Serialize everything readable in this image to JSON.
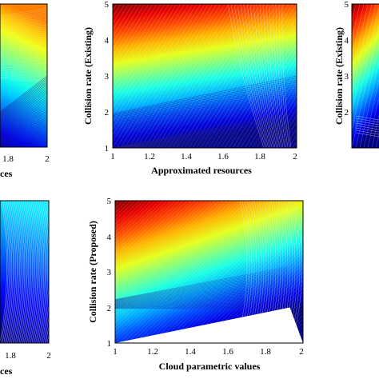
{
  "chart_data": [
    {
      "type": "contour",
      "panel": "top-left (cropped)",
      "xlabel": "ces",
      "ylabel": "",
      "xlim": [
        1.0,
        2.0
      ],
      "ylim": [
        1.0,
        5.0
      ],
      "x_ticks": [
        "1.8",
        "2"
      ],
      "y_ticks": [],
      "colormap": "jet",
      "cmap_range": [
        0.05,
        0.75
      ]
    },
    {
      "type": "contour",
      "panel": "top-middle",
      "xlabel": "Approximated resources",
      "ylabel": "Collision rate (Existing)",
      "xlim": [
        1.0,
        2.0
      ],
      "ylim": [
        1.0,
        5.0
      ],
      "x_ticks": [
        "1",
        "1.2",
        "1.4",
        "1.6",
        "1.8",
        "2"
      ],
      "y_ticks": [
        "1",
        "2",
        "3",
        "4",
        "5"
      ],
      "colormap": "jet",
      "cmap_range": [
        0.0,
        1.0
      ]
    },
    {
      "type": "contour",
      "panel": "top-right (cropped)",
      "xlabel": "",
      "ylabel": "Collision rate (Existing)",
      "xlim": [
        1.0,
        2.0
      ],
      "ylim": [
        1.0,
        5.0
      ],
      "x_ticks": [],
      "y_ticks": [
        "2",
        "3",
        "4",
        "5"
      ],
      "colormap": "jet",
      "cmap_range": [
        0.0,
        1.0
      ]
    },
    {
      "type": "contour",
      "panel": "bottom-left (cropped)",
      "xlabel": "ces",
      "ylabel": "",
      "xlim": [
        1.0,
        2.0
      ],
      "ylim": [
        1.0,
        5.0
      ],
      "x_ticks": [
        "1.8",
        "2"
      ],
      "y_ticks": [],
      "colormap": "jet",
      "cmap_range": [
        0.0,
        0.35
      ]
    },
    {
      "type": "contour",
      "panel": "bottom-middle",
      "xlabel": "Cloud parametric values",
      "ylabel": "Collision rate (Proposed)",
      "xlim": [
        1.0,
        2.0
      ],
      "ylim": [
        1.0,
        5.0
      ],
      "x_ticks": [
        "1",
        "1.2",
        "1.4",
        "1.6",
        "1.8",
        "2"
      ],
      "y_ticks": [
        "1",
        "2",
        "3",
        "4",
        "5"
      ],
      "colormap": "jet",
      "cmap_range": [
        0.0,
        1.0
      ]
    }
  ]
}
